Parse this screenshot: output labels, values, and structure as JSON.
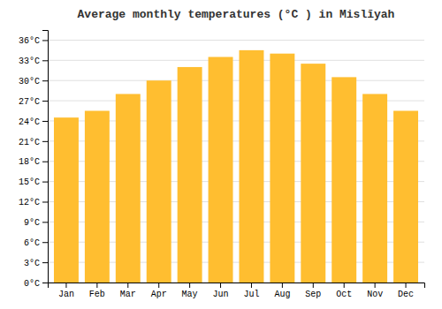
{
  "chart_data": {
    "type": "bar",
    "title": "Average monthly temperatures (°C ) in Mislīyah",
    "categories": [
      "Jan",
      "Feb",
      "Mar",
      "Apr",
      "May",
      "Jun",
      "Jul",
      "Aug",
      "Sep",
      "Oct",
      "Nov",
      "Dec"
    ],
    "values": [
      24.5,
      25.5,
      28.0,
      30.0,
      32.0,
      33.5,
      34.5,
      34.0,
      32.5,
      30.5,
      28.0,
      25.5
    ],
    "color": "#FFBE30",
    "ylim": [
      0,
      37.5
    ],
    "yticks": [
      {
        "value": 0,
        "label": "0°C"
      },
      {
        "value": 3,
        "label": "3°C"
      },
      {
        "value": 6,
        "label": "6°C"
      },
      {
        "value": 9,
        "label": "9°C"
      },
      {
        "value": 12,
        "label": "12°C"
      },
      {
        "value": 15,
        "label": "15°C"
      },
      {
        "value": 18,
        "label": "18°C"
      },
      {
        "value": 21,
        "label": "21°C"
      },
      {
        "value": 24,
        "label": "24°C"
      },
      {
        "value": 27,
        "label": "27°C"
      },
      {
        "value": 30,
        "label": "30°C"
      },
      {
        "value": 33,
        "label": "33°C"
      },
      {
        "value": 36,
        "label": "36°C"
      }
    ],
    "grid": true
  }
}
